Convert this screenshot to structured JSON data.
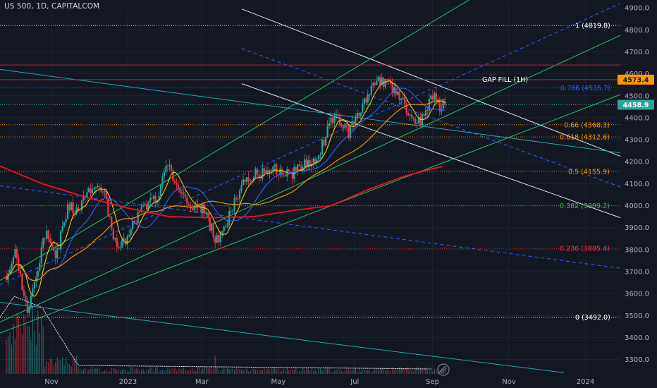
{
  "symbol_title": "US 500, 1D, CAPITALCOM",
  "chart_data": {
    "type": "candlestick",
    "title": "US 500, 1D, CAPITALCOM",
    "ylim": [
      3245,
      4945
    ],
    "y_ticks": [
      3300,
      3400,
      3500,
      3600,
      3700,
      3800,
      3900,
      4000,
      4100,
      4200,
      4300,
      4400,
      4500,
      4600,
      4700,
      4800,
      4900
    ],
    "x_ticks": [
      "Nov",
      "2023",
      "Mar",
      "May",
      "Jul",
      "Sep",
      "Nov",
      "2024"
    ],
    "last_price": "4458.9",
    "gap_fill_price": "4573.4",
    "gap_fill_label": "GAP FILL (1H)",
    "fib_levels": [
      {
        "label": "1 (4819.8)",
        "value": 4819.8,
        "color": "#ffffff"
      },
      {
        "label": "0.786 (4535.7)",
        "value": 4535.7,
        "color": "#2962ff"
      },
      {
        "label": "0.66 (4368.3)",
        "value": 4368.3,
        "color": "#ff9800"
      },
      {
        "label": "0.618 (4312.6)",
        "value": 4312.6,
        "color": "#ff9800"
      },
      {
        "label": "0.5 (4155.9)",
        "value": 4155.9,
        "color": "#ff9800"
      },
      {
        "label": "0.382 (3999.2)",
        "value": 3999.2,
        "color": "#4caf50"
      },
      {
        "label": "0.236 (3805.4)",
        "value": 3805.4,
        "color": "#f23645"
      },
      {
        "label": "0 (3492.0)",
        "value": 3492.0,
        "color": "#ffffff"
      }
    ],
    "price_path": [
      [
        "2022-09-26",
        3650
      ],
      [
        "2022-10-03",
        3780
      ],
      [
        "2022-10-13",
        3520
      ],
      [
        "2022-10-20",
        3700
      ],
      [
        "2022-10-28",
        3900
      ],
      [
        "2022-11-04",
        3760
      ],
      [
        "2022-11-15",
        4010
      ],
      [
        "2022-11-22",
        3960
      ],
      [
        "2022-12-01",
        4080
      ],
      [
        "2022-12-13",
        4060
      ],
      [
        "2022-12-22",
        3830
      ],
      [
        "2022-12-30",
        3840
      ],
      [
        "2023-01-12",
        3990
      ],
      [
        "2023-01-24",
        4040
      ],
      [
        "2023-02-02",
        4180
      ],
      [
        "2023-02-10",
        4090
      ],
      [
        "2023-02-22",
        3990
      ],
      [
        "2023-03-02",
        3980
      ],
      [
        "2023-03-13",
        3840
      ],
      [
        "2023-03-24",
        3970
      ],
      [
        "2023-04-03",
        4120
      ],
      [
        "2023-04-18",
        4150
      ],
      [
        "2023-04-28",
        4160
      ],
      [
        "2023-05-10",
        4140
      ],
      [
        "2023-05-22",
        4190
      ],
      [
        "2023-06-01",
        4220
      ],
      [
        "2023-06-15",
        4420
      ],
      [
        "2023-06-26",
        4330
      ],
      [
        "2023-07-05",
        4430
      ],
      [
        "2023-07-18",
        4560
      ],
      [
        "2023-07-27",
        4570
      ],
      [
        "2023-08-03",
        4500
      ],
      [
        "2023-08-10",
        4460
      ],
      [
        "2023-08-18",
        4370
      ],
      [
        "2023-08-24",
        4400
      ],
      [
        "2023-09-01",
        4510
      ],
      [
        "2023-09-07",
        4450
      ],
      [
        "2023-09-12",
        4458.9
      ]
    ]
  },
  "colors": {
    "background": "#131722",
    "up": "#26a69a",
    "down": "#f23645",
    "ma_red": "#f0121e",
    "ma_orange": "#ff9800",
    "ma_blue": "#2962ff",
    "channel_green": "#22c55e",
    "channel_white": "#e0e3eb",
    "trend_teal": "#22a6b3"
  }
}
